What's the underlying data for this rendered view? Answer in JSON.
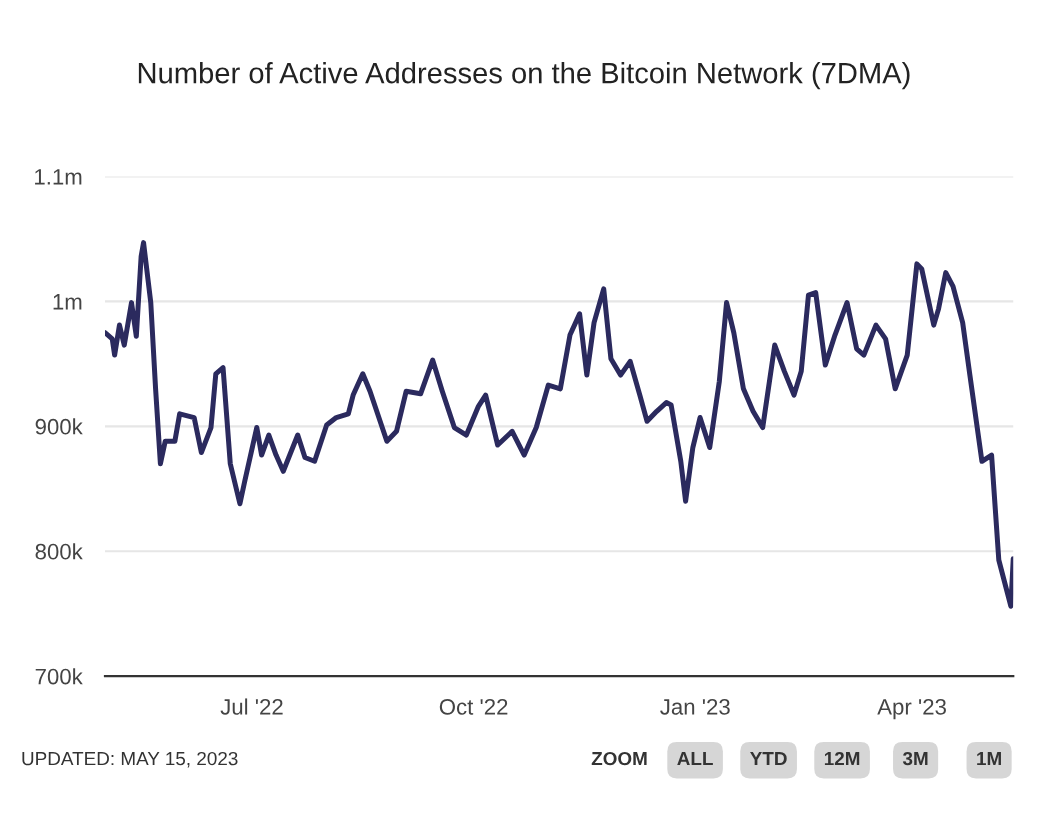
{
  "chart_data": {
    "type": "line",
    "title": "Number of Active Addresses on the Bitcoin Network (7DMA)",
    "x": [
      "2022-05-01",
      "2022-05-04",
      "2022-05-05",
      "2022-05-07",
      "2022-05-09",
      "2022-05-12",
      "2022-05-14",
      "2022-05-16",
      "2022-05-17",
      "2022-05-20",
      "2022-05-22",
      "2022-05-24",
      "2022-05-26",
      "2022-05-30",
      "2022-06-01",
      "2022-06-07",
      "2022-06-10",
      "2022-06-14",
      "2022-06-16",
      "2022-06-19",
      "2022-06-22",
      "2022-06-26",
      "2022-06-28",
      "2022-07-03",
      "2022-07-05",
      "2022-07-08",
      "2022-07-11",
      "2022-07-14",
      "2022-07-20",
      "2022-07-23",
      "2022-07-27",
      "2022-08-01",
      "2022-08-05",
      "2022-08-10",
      "2022-08-12",
      "2022-08-16",
      "2022-08-19",
      "2022-08-26",
      "2022-08-30",
      "2022-09-03",
      "2022-09-09",
      "2022-09-14",
      "2022-09-18",
      "2022-09-23",
      "2022-09-28",
      "2022-10-03",
      "2022-10-06",
      "2022-10-11",
      "2022-10-17",
      "2022-10-22",
      "2022-10-27",
      "2022-11-01",
      "2022-11-06",
      "2022-11-10",
      "2022-11-14",
      "2022-11-17",
      "2022-11-20",
      "2022-11-24",
      "2022-11-27",
      "2022-12-01",
      "2022-12-05",
      "2022-12-09",
      "2022-12-12",
      "2022-12-16",
      "2022-12-20",
      "2022-12-22",
      "2022-12-26",
      "2022-12-28",
      "2022-12-31",
      "2023-01-03",
      "2023-01-07",
      "2023-01-11",
      "2023-01-14",
      "2023-01-17",
      "2023-01-21",
      "2023-01-25",
      "2023-01-29",
      "2023-02-03",
      "2023-02-07",
      "2023-02-11",
      "2023-02-14",
      "2023-02-17",
      "2023-02-20",
      "2023-02-24",
      "2023-02-28",
      "2023-03-05",
      "2023-03-09",
      "2023-03-12",
      "2023-03-17",
      "2023-03-21",
      "2023-03-25",
      "2023-03-30",
      "2023-04-03",
      "2023-04-05",
      "2023-04-10",
      "2023-04-12",
      "2023-04-15",
      "2023-04-18",
      "2023-04-22",
      "2023-04-25",
      "2023-04-30",
      "2023-05-04",
      "2023-05-07",
      "2023-05-12",
      "2023-05-13"
    ],
    "series": [
      {
        "color": "#2b2a5e",
        "values": [
          975000,
          970000,
          957000,
          981000,
          965000,
          999000,
          972000,
          1036000,
          1047000,
          999000,
          930000,
          870000,
          888000,
          888000,
          910000,
          907000,
          879000,
          899000,
          942000,
          947000,
          870000,
          838000,
          856000,
          899000,
          877000,
          893000,
          877000,
          864000,
          893000,
          875000,
          872000,
          901000,
          907000,
          910000,
          925000,
          942000,
          928000,
          888000,
          896000,
          928000,
          926000,
          953000,
          928000,
          899000,
          893000,
          916000,
          925000,
          885000,
          896000,
          877000,
          899000,
          933000,
          930000,
          973000,
          990000,
          941000,
          983000,
          1010000,
          954000,
          941000,
          952000,
          925000,
          904000,
          912000,
          919000,
          917000,
          872000,
          840000,
          883000,
          907000,
          883000,
          936000,
          999000,
          975000,
          930000,
          912000,
          899000,
          965000,
          944000,
          925000,
          944000,
          1005000,
          1007000,
          949000,
          973000,
          999000,
          962000,
          957000,
          981000,
          970000,
          930000,
          957000,
          1030000,
          1026000,
          981000,
          994000,
          1023000,
          1012000,
          983000,
          941000,
          872000,
          877000,
          793000,
          756000,
          794000
        ]
      }
    ],
    "xlim": [
      "2022-05-01",
      "2023-05-13"
    ],
    "xticks": [
      {
        "value": "2022-07-01",
        "label": "Jul '22"
      },
      {
        "value": "2022-10-01",
        "label": "Oct '22"
      },
      {
        "value": "2023-01-01",
        "label": "Jan '23"
      },
      {
        "value": "2023-04-01",
        "label": "Apr '23"
      }
    ],
    "ylim": [
      700000,
      1100000
    ],
    "yticks": [
      {
        "value": 700000,
        "label": "700k"
      },
      {
        "value": 800000,
        "label": "800k"
      },
      {
        "value": 900000,
        "label": "900k"
      },
      {
        "value": 1000000,
        "label": "1m"
      },
      {
        "value": 1100000,
        "label": "1.1m"
      }
    ],
    "grid": "y",
    "legend": false,
    "marker": "none",
    "line_style": "solid",
    "annotations": [
      "UPDATED: MAY 15, 2023",
      "ZOOM",
      "ALL",
      "YTD",
      "12M",
      "3M",
      "1M"
    ]
  }
}
